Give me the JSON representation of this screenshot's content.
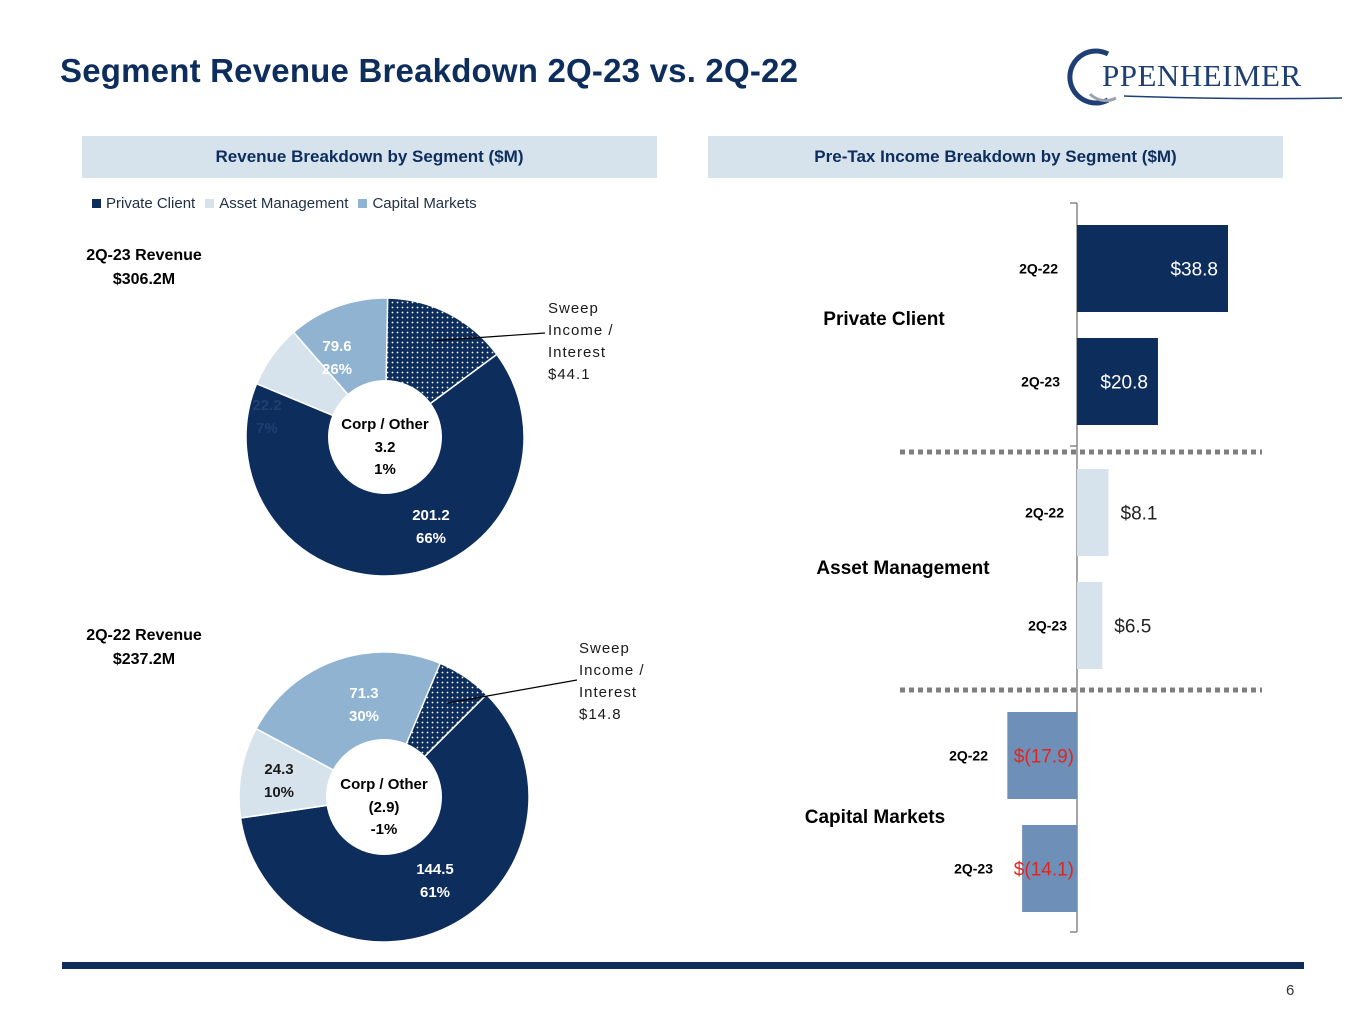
{
  "slide": {
    "title": "Segment Revenue Breakdown 2Q-23 vs. 2Q-22",
    "logo_text": "PPENHEIMER",
    "page_number": "6"
  },
  "left_panel": {
    "header": "Revenue Breakdown by Segment ($M)",
    "legend": [
      {
        "label": "Private Client",
        "color": "#0d2d5c"
      },
      {
        "label": "Asset Management",
        "color": "#d6e3ed"
      },
      {
        "label": "Capital Markets",
        "color": "#8fb3d0"
      }
    ],
    "donut_2q23": {
      "title_line1": "2Q-23 Revenue",
      "title_line2": "$306.2M",
      "center_line1": "Corp  / Other",
      "center_line2": "3.2",
      "center_line3": "1%",
      "sweep_lines": [
        "Sweep",
        "Income /",
        "Interest",
        "$44.1"
      ]
    },
    "donut_2q22": {
      "title_line1": "2Q-22 Revenue",
      "title_line2": "$237.2M",
      "center_line1": "Corp  / Other",
      "center_line2": "(2.9)",
      "center_line3": "-1%",
      "sweep_lines": [
        "Sweep",
        "Income /",
        "Interest",
        "$14.8"
      ]
    }
  },
  "right_panel": {
    "header": "Pre-Tax Income Breakdown by Segment ($M)"
  },
  "chart_data": [
    {
      "type": "pie",
      "variant": "donut",
      "title": "2Q-23 Revenue $306.2M",
      "slices": [
        {
          "name": "Private Client",
          "value": 201.2,
          "percent": "66%",
          "value_label": "201.2",
          "color": "#0d2d5c",
          "label_color": "#ffffff"
        },
        {
          "name": "Asset Management",
          "value": 22.2,
          "percent": "7%",
          "value_label": "22.2",
          "color": "#d6e3ed",
          "label_color": "#1e3f73"
        },
        {
          "name": "Capital Markets",
          "value": 79.6,
          "percent": "26%",
          "value_label": "79.6",
          "color": "#8fb3d0",
          "label_color": "#ffffff"
        }
      ],
      "sweep_subslice": {
        "name": "Sweep Income / Interest",
        "value": 44.1,
        "within": "Private Client"
      }
    },
    {
      "type": "pie",
      "variant": "donut",
      "title": "2Q-22 Revenue $237.2M",
      "slices": [
        {
          "name": "Private Client",
          "value": 144.5,
          "percent": "61%",
          "value_label": "144.5",
          "color": "#0d2d5c",
          "label_color": "#ffffff"
        },
        {
          "name": "Asset Management",
          "value": 24.3,
          "percent": "10%",
          "value_label": "24.3",
          "color": "#d6e3ed",
          "label_color": "#1a1a1a"
        },
        {
          "name": "Capital Markets",
          "value": 71.3,
          "percent": "30%",
          "value_label": "71.3",
          "color": "#8fb3d0",
          "label_color": "#ffffff"
        }
      ],
      "sweep_subslice": {
        "name": "Sweep Income / Interest",
        "value": 14.8,
        "within": "Private Client"
      }
    },
    {
      "type": "bar",
      "orientation": "horizontal",
      "title": "Pre-Tax Income Breakdown by Segment ($M)",
      "groups": [
        {
          "name": "Private Client",
          "color": "#0d2d5c",
          "label_color": "#ffffff",
          "bars": [
            {
              "period": "2Q-22",
              "value": 38.8,
              "label": "$38.8"
            },
            {
              "period": "2Q-23",
              "value": 20.8,
              "label": "$20.8"
            }
          ]
        },
        {
          "name": "Asset Management",
          "color": "#d6e3ed",
          "label_color": "#222222",
          "bars": [
            {
              "period": "2Q-22",
              "value": 8.1,
              "label": "$8.1"
            },
            {
              "period": "2Q-23",
              "value": 6.5,
              "label": "$6.5"
            }
          ]
        },
        {
          "name": "Capital Markets",
          "color": "#6e8fb8",
          "label_color": "#e0261c",
          "bars": [
            {
              "period": "2Q-22",
              "value": -17.9,
              "label": "$(17.9)"
            },
            {
              "period": "2Q-23",
              "value": -14.1,
              "label": "$(14.1)"
            }
          ]
        }
      ],
      "xlim": [
        -20,
        40
      ]
    }
  ]
}
